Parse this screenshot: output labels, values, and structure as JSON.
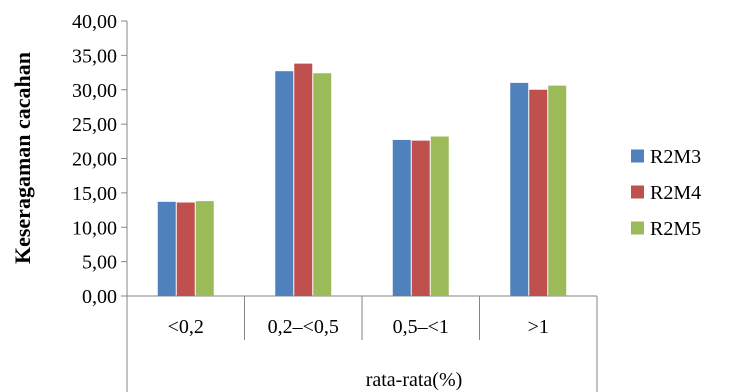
{
  "chart_data": {
    "type": "bar",
    "title": "",
    "xlabel": "rata-rata(%)",
    "ylabel": "Keseragaman cacahan",
    "ylim": [
      0,
      40
    ],
    "ytick_step": 5,
    "yticks": [
      "0,00",
      "5,00",
      "10,00",
      "15,00",
      "20,00",
      "25,00",
      "30,00",
      "35,00",
      "40,00"
    ],
    "categories": [
      "<0,2",
      "0,2–<0,5",
      "0,5–<1",
      ">1"
    ],
    "series": [
      {
        "name": "R2M3",
        "color": "#4f81bd",
        "values": [
          13.7,
          32.7,
          22.7,
          31.0
        ]
      },
      {
        "name": "R2M4",
        "color": "#c0504d",
        "values": [
          13.6,
          33.8,
          22.6,
          30.0
        ]
      },
      {
        "name": "R2M5",
        "color": "#9bbb59",
        "values": [
          13.8,
          32.4,
          23.2,
          30.6
        ]
      }
    ],
    "grid": false,
    "legend": "right"
  }
}
